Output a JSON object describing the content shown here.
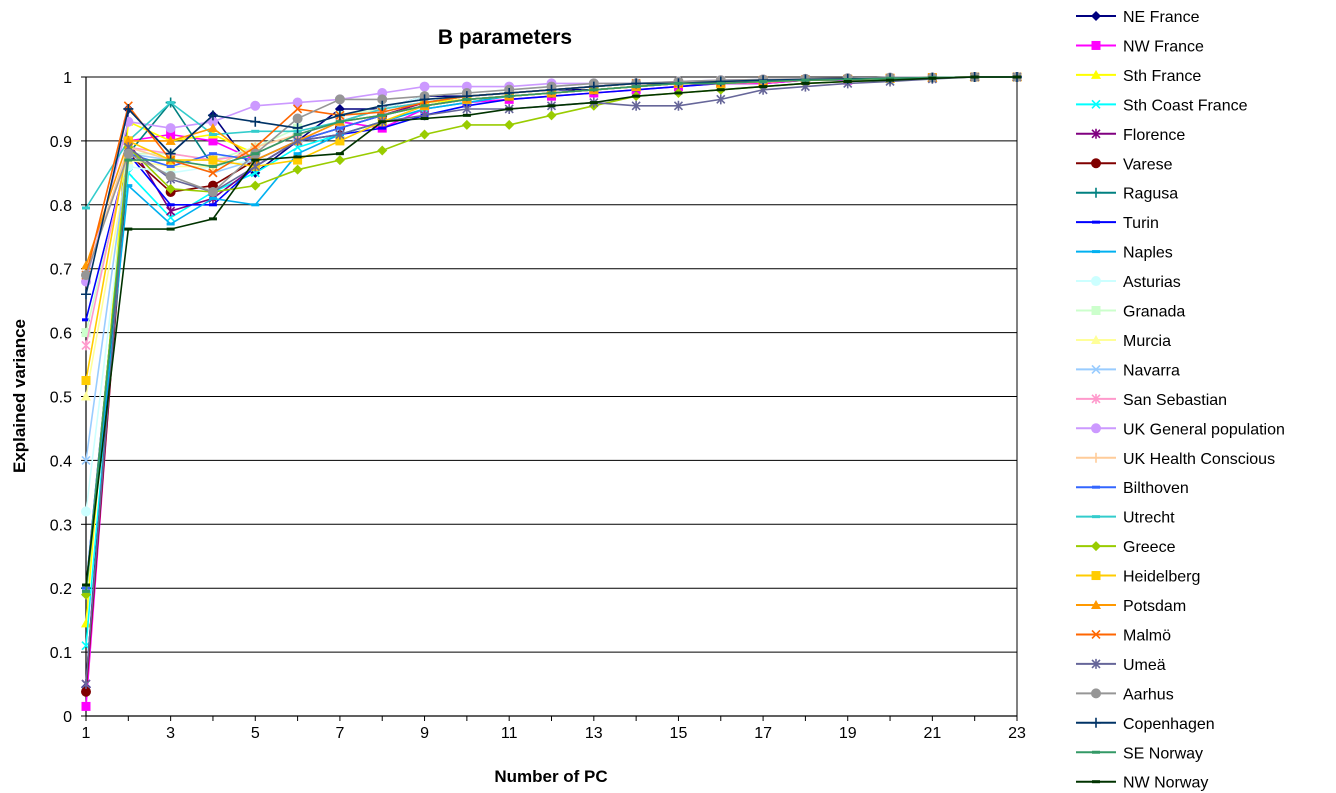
{
  "chart_data": {
    "type": "line",
    "title": "B parameters",
    "xlabel": "Number of PC",
    "ylabel": "Explained variance",
    "xlim": [
      1,
      23
    ],
    "ylim": [
      0,
      1
    ],
    "x_ticks": [
      1,
      3,
      5,
      7,
      9,
      11,
      13,
      15,
      17,
      19,
      21,
      23
    ],
    "y_ticks": [
      "0",
      "0.1",
      "0.2",
      "0.3",
      "0.4",
      "0.5",
      "0.6",
      "0.7",
      "0.8",
      "0.9",
      "1"
    ],
    "grid": "horizontal",
    "legend_position": "right",
    "x": [
      1,
      2,
      3,
      4,
      5,
      6,
      7,
      8,
      9,
      10,
      11,
      12,
      13,
      14,
      15,
      16,
      17,
      18,
      19,
      20,
      21,
      22,
      23
    ],
    "series": [
      {
        "name": "NE France",
        "color": "#000080",
        "marker": "diamond",
        "values": [
          0.045,
          0.95,
          0.88,
          0.94,
          0.85,
          0.9,
          0.95,
          0.95,
          0.97,
          0.97,
          0.975,
          0.98,
          0.98,
          0.985,
          0.99,
          0.99,
          0.99,
          0.995,
          0.995,
          0.995,
          0.998,
          1,
          1
        ]
      },
      {
        "name": "NW France",
        "color": "#FF00FF",
        "marker": "square",
        "values": [
          0.015,
          0.9,
          0.91,
          0.9,
          0.87,
          0.9,
          0.93,
          0.92,
          0.95,
          0.96,
          0.965,
          0.97,
          0.975,
          0.98,
          0.985,
          0.99,
          0.99,
          0.995,
          0.995,
          0.998,
          0.999,
          1,
          1
        ]
      },
      {
        "name": "Sth France",
        "color": "#FFFF00",
        "marker": "triangle",
        "values": [
          0.145,
          0.93,
          0.9,
          0.91,
          0.88,
          0.91,
          0.93,
          0.94,
          0.96,
          0.965,
          0.97,
          0.975,
          0.98,
          0.985,
          0.99,
          0.99,
          0.992,
          0.995,
          0.996,
          0.997,
          0.999,
          1,
          1
        ]
      },
      {
        "name": "Sth Coast France",
        "color": "#00FFFF",
        "marker": "x",
        "values": [
          0.11,
          0.85,
          0.78,
          0.82,
          0.85,
          0.89,
          0.91,
          0.93,
          0.95,
          0.96,
          0.97,
          0.975,
          0.98,
          0.985,
          0.99,
          0.99,
          0.993,
          0.995,
          0.996,
          0.997,
          0.999,
          1,
          1
        ]
      },
      {
        "name": "Florence",
        "color": "#800080",
        "marker": "star",
        "values": [
          0.05,
          0.9,
          0.79,
          0.81,
          0.86,
          0.9,
          0.92,
          0.94,
          0.96,
          0.97,
          0.975,
          0.98,
          0.985,
          0.99,
          0.99,
          0.993,
          0.995,
          0.996,
          0.997,
          0.998,
          0.999,
          1,
          1
        ]
      },
      {
        "name": "Varese",
        "color": "#800000",
        "marker": "circle",
        "values": [
          0.038,
          0.88,
          0.82,
          0.83,
          0.87,
          0.9,
          0.92,
          0.94,
          0.955,
          0.965,
          0.97,
          0.975,
          0.98,
          0.985,
          0.99,
          0.99,
          0.993,
          0.995,
          0.996,
          0.998,
          0.999,
          1,
          1
        ]
      },
      {
        "name": "Ragusa",
        "color": "#008080",
        "marker": "plus",
        "values": [
          0.2,
          0.88,
          0.96,
          0.86,
          0.88,
          0.91,
          0.93,
          0.95,
          0.96,
          0.97,
          0.975,
          0.98,
          0.985,
          0.99,
          0.99,
          0.993,
          0.995,
          0.996,
          0.997,
          0.998,
          0.999,
          1,
          1
        ]
      },
      {
        "name": "Turin",
        "color": "#0000FF",
        "marker": "dash",
        "values": [
          0.62,
          0.88,
          0.8,
          0.8,
          0.86,
          0.9,
          0.91,
          0.92,
          0.94,
          0.955,
          0.965,
          0.97,
          0.975,
          0.98,
          0.985,
          0.99,
          0.993,
          0.995,
          0.996,
          0.998,
          0.999,
          1,
          1
        ]
      },
      {
        "name": "Naples",
        "color": "#00B0F0",
        "marker": "dash",
        "values": [
          0.19,
          0.83,
          0.77,
          0.81,
          0.8,
          0.88,
          0.91,
          0.93,
          0.95,
          0.96,
          0.97,
          0.975,
          0.98,
          0.985,
          0.99,
          0.99,
          0.993,
          0.995,
          0.996,
          0.998,
          0.999,
          1,
          1
        ]
      },
      {
        "name": "Asturias",
        "color": "#CCFFFF",
        "marker": "circle",
        "values": [
          0.32,
          0.86,
          0.85,
          0.86,
          0.87,
          0.9,
          0.93,
          0.95,
          0.97,
          0.975,
          0.98,
          0.985,
          0.99,
          0.99,
          0.993,
          0.995,
          0.996,
          0.997,
          0.998,
          0.999,
          0.999,
          1,
          1
        ]
      },
      {
        "name": "Granada",
        "color": "#CCFFCC",
        "marker": "square",
        "values": [
          0.6,
          0.88,
          0.88,
          0.87,
          0.89,
          0.92,
          0.94,
          0.95,
          0.96,
          0.97,
          0.975,
          0.98,
          0.985,
          0.99,
          0.99,
          0.993,
          0.995,
          0.996,
          0.997,
          0.998,
          0.999,
          1,
          1
        ]
      },
      {
        "name": "Murcia",
        "color": "#FFFF99",
        "marker": "triangle",
        "values": [
          0.5,
          0.87,
          0.86,
          0.86,
          0.88,
          0.91,
          0.93,
          0.94,
          0.955,
          0.965,
          0.97,
          0.975,
          0.98,
          0.985,
          0.99,
          0.99,
          0.993,
          0.995,
          0.996,
          0.998,
          0.999,
          1,
          1
        ]
      },
      {
        "name": "Navarra",
        "color": "#99CCFF",
        "marker": "x",
        "values": [
          0.4,
          0.88,
          0.87,
          0.85,
          0.87,
          0.9,
          0.92,
          0.94,
          0.955,
          0.965,
          0.97,
          0.975,
          0.98,
          0.985,
          0.99,
          0.99,
          0.993,
          0.995,
          0.996,
          0.998,
          0.999,
          1,
          1
        ]
      },
      {
        "name": "San Sebastian",
        "color": "#FF99CC",
        "marker": "star",
        "values": [
          0.58,
          0.89,
          0.88,
          0.87,
          0.88,
          0.91,
          0.93,
          0.95,
          0.96,
          0.97,
          0.975,
          0.98,
          0.985,
          0.99,
          0.99,
          0.993,
          0.995,
          0.996,
          0.997,
          0.998,
          0.999,
          1,
          1
        ]
      },
      {
        "name": "UK General population",
        "color": "#CC99FF",
        "marker": "circle",
        "values": [
          0.68,
          0.93,
          0.92,
          0.93,
          0.955,
          0.96,
          0.965,
          0.975,
          0.985,
          0.985,
          0.985,
          0.99,
          0.99,
          0.99,
          0.993,
          0.995,
          0.996,
          0.997,
          0.998,
          0.999,
          0.999,
          1,
          1
        ]
      },
      {
        "name": "UK Health Conscious",
        "color": "#FFCC99",
        "marker": "plus",
        "values": [
          0.69,
          0.89,
          0.87,
          0.86,
          0.89,
          0.91,
          0.93,
          0.95,
          0.96,
          0.97,
          0.975,
          0.98,
          0.985,
          0.99,
          0.99,
          0.993,
          0.995,
          0.996,
          0.997,
          0.998,
          0.999,
          1,
          1
        ]
      },
      {
        "name": "Bilthoven",
        "color": "#3366FF",
        "marker": "dash",
        "values": [
          0.2,
          0.88,
          0.86,
          0.88,
          0.87,
          0.9,
          0.92,
          0.94,
          0.955,
          0.965,
          0.97,
          0.975,
          0.98,
          0.985,
          0.99,
          0.99,
          0.993,
          0.995,
          0.996,
          0.998,
          0.999,
          1,
          1
        ]
      },
      {
        "name": "Utrecht",
        "color": "#33CCCC",
        "marker": "dash",
        "values": [
          0.795,
          0.9,
          0.96,
          0.91,
          0.915,
          0.915,
          0.93,
          0.95,
          0.96,
          0.97,
          0.975,
          0.98,
          0.985,
          0.99,
          0.99,
          0.993,
          0.995,
          0.996,
          0.997,
          0.998,
          0.999,
          1,
          1
        ]
      },
      {
        "name": "Greece",
        "color": "#99CC00",
        "marker": "diamond",
        "values": [
          0.19,
          0.89,
          0.825,
          0.82,
          0.83,
          0.855,
          0.87,
          0.885,
          0.91,
          0.925,
          0.925,
          0.94,
          0.955,
          0.97,
          0.975,
          0.98,
          0.985,
          0.99,
          0.993,
          0.995,
          0.998,
          1,
          1
        ]
      },
      {
        "name": "Heidelberg",
        "color": "#FFCC00",
        "marker": "square",
        "values": [
          0.525,
          0.9,
          0.87,
          0.87,
          0.86,
          0.87,
          0.9,
          0.93,
          0.955,
          0.965,
          0.97,
          0.975,
          0.98,
          0.985,
          0.99,
          0.99,
          0.993,
          0.995,
          0.996,
          0.998,
          0.999,
          1,
          1
        ]
      },
      {
        "name": "Potsdam",
        "color": "#FF9900",
        "marker": "triangle",
        "values": [
          0.705,
          0.9,
          0.9,
          0.92,
          0.87,
          0.9,
          0.93,
          0.94,
          0.955,
          0.965,
          0.97,
          0.975,
          0.98,
          0.985,
          0.99,
          0.99,
          0.993,
          0.995,
          0.996,
          0.998,
          0.999,
          1,
          1
        ]
      },
      {
        "name": "Malmö",
        "color": "#FF6600",
        "marker": "x",
        "values": [
          0.69,
          0.955,
          0.87,
          0.85,
          0.89,
          0.95,
          0.94,
          0.945,
          0.96,
          0.97,
          0.975,
          0.98,
          0.985,
          0.99,
          0.99,
          0.993,
          0.995,
          0.996,
          0.997,
          0.998,
          0.999,
          1,
          1
        ]
      },
      {
        "name": "Umeä",
        "color": "#666699",
        "marker": "star",
        "values": [
          0.05,
          0.89,
          0.84,
          0.82,
          0.86,
          0.9,
          0.91,
          0.93,
          0.94,
          0.95,
          0.95,
          0.955,
          0.96,
          0.955,
          0.955,
          0.965,
          0.98,
          0.985,
          0.99,
          0.993,
          0.997,
          1,
          1
        ]
      },
      {
        "name": "Aarhus",
        "color": "#969696",
        "marker": "circle",
        "values": [
          0.69,
          0.88,
          0.845,
          0.82,
          0.88,
          0.935,
          0.965,
          0.965,
          0.97,
          0.975,
          0.98,
          0.985,
          0.99,
          0.99,
          0.993,
          0.995,
          0.996,
          0.997,
          0.998,
          0.999,
          0.999,
          1,
          1
        ]
      },
      {
        "name": "Copenhagen",
        "color": "#003366",
        "marker": "plus",
        "values": [
          0.66,
          0.95,
          0.88,
          0.94,
          0.93,
          0.92,
          0.94,
          0.955,
          0.965,
          0.97,
          0.975,
          0.98,
          0.985,
          0.99,
          0.99,
          0.993,
          0.995,
          0.996,
          0.997,
          0.998,
          0.999,
          1,
          1
        ]
      },
      {
        "name": "SE Norway",
        "color": "#339966",
        "marker": "dash",
        "values": [
          0.195,
          0.87,
          0.87,
          0.86,
          0.88,
          0.91,
          0.93,
          0.94,
          0.955,
          0.965,
          0.97,
          0.975,
          0.98,
          0.985,
          0.99,
          0.99,
          0.993,
          0.995,
          0.996,
          0.998,
          0.999,
          1,
          1
        ]
      },
      {
        "name": "NW Norway",
        "color": "#003300",
        "marker": "dash",
        "values": [
          0.205,
          0.762,
          0.762,
          0.778,
          0.87,
          0.875,
          0.88,
          0.93,
          0.935,
          0.94,
          0.95,
          0.955,
          0.96,
          0.97,
          0.975,
          0.98,
          0.985,
          0.99,
          0.993,
          0.995,
          0.998,
          1,
          1
        ]
      }
    ]
  }
}
